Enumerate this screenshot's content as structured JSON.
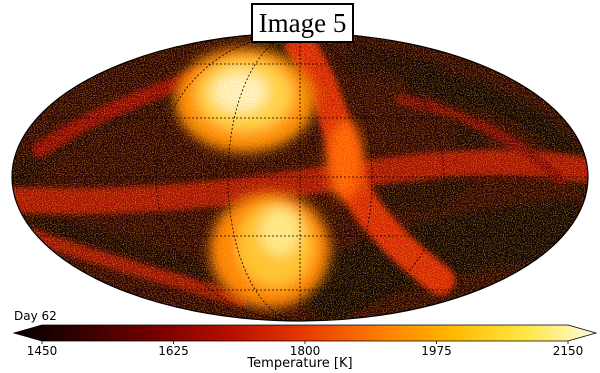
{
  "title": "Image 5",
  "day_label": "Day 62",
  "colorbar": {
    "label": "Temperature [K]",
    "ticks": [
      "1450",
      "1625",
      "1800",
      "1975",
      "2150"
    ],
    "min": 1450,
    "max": 2150,
    "colors": [
      "#000000",
      "#3a0000",
      "#7a0000",
      "#b81000",
      "#e83a00",
      "#ff7a00",
      "#ffb800",
      "#ffe640",
      "#fffbe0"
    ]
  }
}
